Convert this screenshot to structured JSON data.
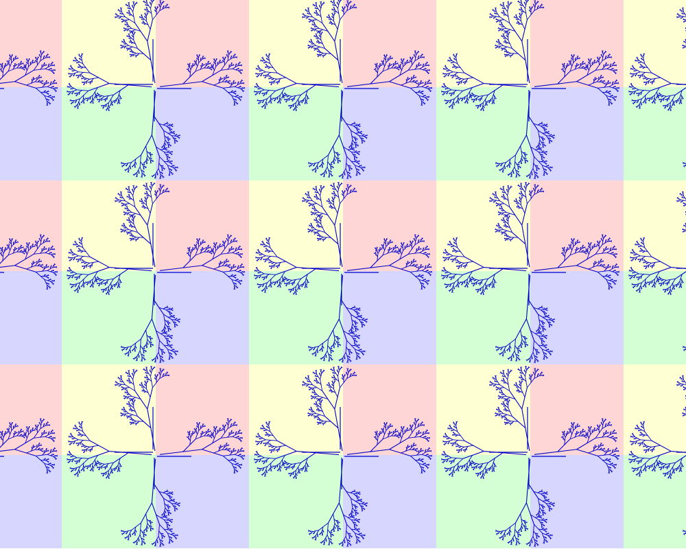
{
  "pattern": {
    "name": "fractal-tree-tiled-pattern",
    "grid_columns": 4,
    "grid_rows": 3,
    "quadrant_colors": {
      "top_left": "#ffffd4",
      "top_right": "#ffd6d6",
      "bottom_left": "#d4ffd4",
      "bottom_right": "#d6d6ff"
    },
    "branch_color": "#0000c8",
    "recursion_depth": 6,
    "branch_ratio": 0.52,
    "branch_angle_deg": 24
  }
}
